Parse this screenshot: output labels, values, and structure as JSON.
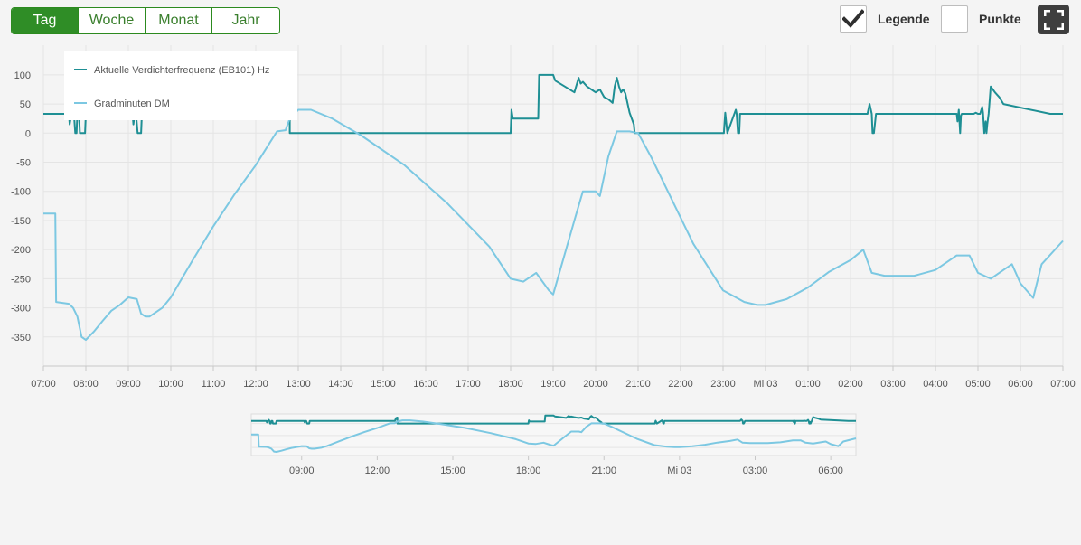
{
  "period_buttons": [
    "Tag",
    "Woche",
    "Monat",
    "Jahr"
  ],
  "active_period": "Tag",
  "options": {
    "legend_label": "Legende",
    "legend_checked": true,
    "points_label": "Punkte",
    "points_checked": false
  },
  "colors": {
    "compressor": "#1e8f94",
    "degree_minutes": "#7cc8e2",
    "accent": "#2f8d26"
  },
  "icons": {
    "check": "check-icon",
    "fullscreen": "fullscreen-icon"
  },
  "chart_data": {
    "type": "line",
    "title": "",
    "xlabel": "",
    "ylabel": "",
    "ylim": [
      -400,
      120
    ],
    "yticks": [
      100,
      50,
      0,
      -50,
      -100,
      -150,
      -200,
      -250,
      -300,
      -350
    ],
    "xlim": [
      7.0,
      31.0
    ],
    "xticks": [
      {
        "label": "07:00",
        "h": 7
      },
      {
        "label": "08:00",
        "h": 8
      },
      {
        "label": "09:00",
        "h": 9
      },
      {
        "label": "10:00",
        "h": 10
      },
      {
        "label": "11:00",
        "h": 11
      },
      {
        "label": "12:00",
        "h": 12
      },
      {
        "label": "13:00",
        "h": 13
      },
      {
        "label": "14:00",
        "h": 14
      },
      {
        "label": "15:00",
        "h": 15
      },
      {
        "label": "16:00",
        "h": 16
      },
      {
        "label": "17:00",
        "h": 17
      },
      {
        "label": "18:00",
        "h": 18
      },
      {
        "label": "19:00",
        "h": 19
      },
      {
        "label": "20:00",
        "h": 20
      },
      {
        "label": "21:00",
        "h": 21
      },
      {
        "label": "22:00",
        "h": 22
      },
      {
        "label": "23:00",
        "h": 23
      },
      {
        "label": "Mi 03",
        "h": 24
      },
      {
        "label": "01:00",
        "h": 25
      },
      {
        "label": "02:00",
        "h": 26
      },
      {
        "label": "03:00",
        "h": 27
      },
      {
        "label": "04:00",
        "h": 28
      },
      {
        "label": "05:00",
        "h": 29
      },
      {
        "label": "06:00",
        "h": 30
      },
      {
        "label": "07:00",
        "h": 31
      }
    ],
    "navigator_ticks": [
      {
        "label": "09:00",
        "h": 9
      },
      {
        "label": "12:00",
        "h": 12
      },
      {
        "label": "15:00",
        "h": 15
      },
      {
        "label": "18:00",
        "h": 18
      },
      {
        "label": "21:00",
        "h": 21
      },
      {
        "label": "Mi 03",
        "h": 24
      },
      {
        "label": "03:00",
        "h": 27
      },
      {
        "label": "06:00",
        "h": 30
      }
    ],
    "legend_position": "top-left",
    "grid": true,
    "series": [
      {
        "name": "Aktuelle Verdichterfrequenz (EB101) Hz",
        "x": [
          7.0,
          7.6,
          7.62,
          7.66,
          7.7,
          7.72,
          7.75,
          7.78,
          7.8,
          7.84,
          7.86,
          7.98,
          8.0,
          9.1,
          9.12,
          9.15,
          9.18,
          9.22,
          9.24,
          9.3,
          9.32,
          12.7,
          12.75,
          12.8,
          12.8,
          18.0,
          18.02,
          18.05,
          18.1,
          18.65,
          18.67,
          18.7,
          19.0,
          19.05,
          19.5,
          19.6,
          19.65,
          19.7,
          19.8,
          19.9,
          20.0,
          20.1,
          20.2,
          20.3,
          20.4,
          20.45,
          20.5,
          20.55,
          20.6,
          20.65,
          20.7,
          20.8,
          20.9,
          20.92,
          20.95,
          23.0,
          23.02,
          23.05,
          23.1,
          23.3,
          23.32,
          23.35,
          23.38,
          23.4,
          23.42,
          26.4,
          26.45,
          26.5,
          26.52,
          26.55,
          26.6,
          28.5,
          28.52,
          28.55,
          28.58,
          28.6,
          28.62,
          28.9,
          28.95,
          29.0,
          29.05,
          29.1,
          29.12,
          29.15,
          29.18,
          29.2,
          29.22,
          29.25,
          29.3,
          29.35,
          29.4,
          29.5,
          29.6,
          30.7,
          30.8,
          31.0
        ],
        "y": [
          33,
          33,
          15,
          33,
          45,
          33,
          0,
          0,
          33,
          33,
          0,
          0,
          33,
          33,
          15,
          33,
          33,
          0,
          0,
          0,
          33,
          33,
          70,
          75,
          0,
          0,
          40,
          25,
          25,
          25,
          100,
          100,
          100,
          90,
          70,
          95,
          85,
          88,
          80,
          75,
          70,
          75,
          62,
          58,
          52,
          80,
          95,
          80,
          70,
          75,
          68,
          35,
          15,
          0,
          0,
          0,
          0,
          35,
          0,
          40,
          33,
          0,
          0,
          33,
          33,
          33,
          50,
          33,
          0,
          0,
          33,
          33,
          20,
          40,
          0,
          30,
          33,
          33,
          35,
          33,
          33,
          45,
          35,
          0,
          20,
          0,
          15,
          33,
          80,
          75,
          70,
          62,
          50,
          33,
          33,
          33
        ]
      },
      {
        "name": "Gradminuten DM",
        "x": [
          7.0,
          7.28,
          7.3,
          7.6,
          7.7,
          7.8,
          7.9,
          8.0,
          8.2,
          8.4,
          8.6,
          8.8,
          9.0,
          9.2,
          9.3,
          9.4,
          9.5,
          9.8,
          10.0,
          10.5,
          11.0,
          11.5,
          12.0,
          12.3,
          12.5,
          12.7,
          12.8,
          13.0,
          13.3,
          13.8,
          14.5,
          15.5,
          16.5,
          17.5,
          18.0,
          18.3,
          18.6,
          18.9,
          19.0,
          19.5,
          19.7,
          20.0,
          20.1,
          20.3,
          20.5,
          20.8,
          21.0,
          21.3,
          21.7,
          22.3,
          23.0,
          23.5,
          23.8,
          24.0,
          24.5,
          25.0,
          25.5,
          26.0,
          26.3,
          26.5,
          26.8,
          27.5,
          28.0,
          28.5,
          28.8,
          29.0,
          29.3,
          29.6,
          29.8,
          30.0,
          30.3,
          30.5,
          31.0
        ],
        "y": [
          -138,
          -138,
          -290,
          -293,
          -300,
          -315,
          -350,
          -355,
          -340,
          -322,
          -305,
          -295,
          -282,
          -285,
          -310,
          -315,
          -315,
          -300,
          -282,
          -220,
          -160,
          -105,
          -55,
          -20,
          3,
          5,
          25,
          40,
          40,
          25,
          -5,
          -55,
          -120,
          -195,
          -250,
          -255,
          -240,
          -270,
          -277,
          -150,
          -100,
          -100,
          -108,
          -40,
          3,
          3,
          0,
          -40,
          -100,
          -190,
          -270,
          -290,
          -295,
          -295,
          -285,
          -265,
          -238,
          -218,
          -200,
          -240,
          -245,
          -245,
          -235,
          -210,
          -210,
          -240,
          -250,
          -235,
          -225,
          -258,
          -283,
          -225,
          -185
        ]
      }
    ]
  }
}
